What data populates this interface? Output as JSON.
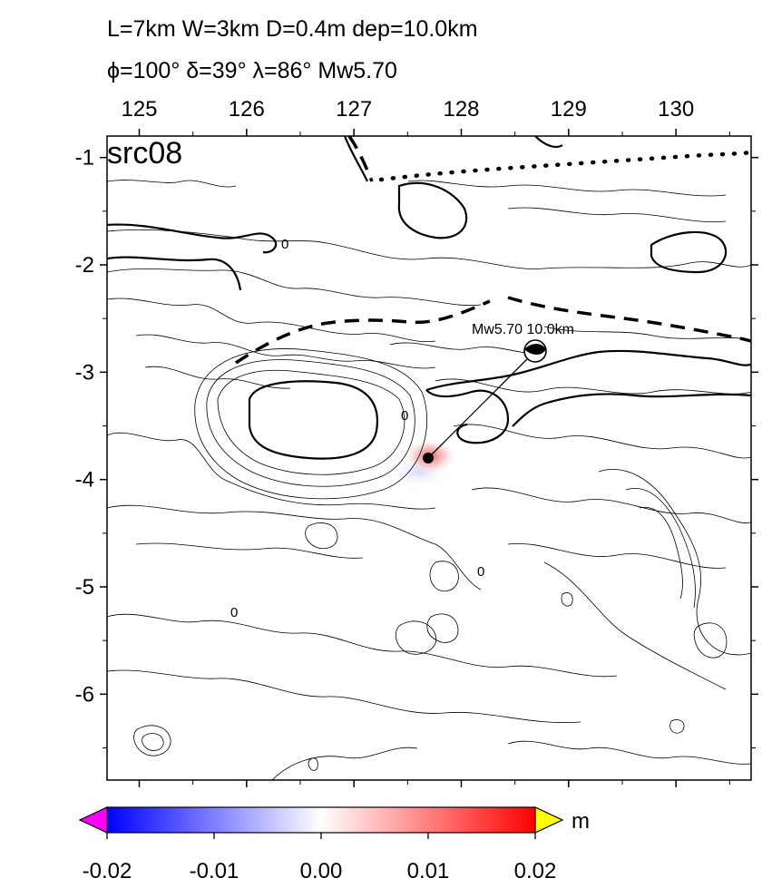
{
  "header": {
    "line1": "L=7km W=3km D=0.4m dep=10.0km",
    "line2": "ϕ=100° δ=39° λ=86° Mw5.70"
  },
  "map": {
    "panel_label": "src08",
    "x_ticks": [
      "125",
      "126",
      "127",
      "128",
      "129",
      "130"
    ],
    "x_tick_values": [
      125,
      126,
      127,
      128,
      129,
      130
    ],
    "y_ticks": [
      "-1",
      "-2",
      "-3",
      "-4",
      "-5",
      "-6"
    ],
    "y_tick_values": [
      -1,
      -2,
      -3,
      -4,
      -5,
      -6
    ],
    "x_range": [
      124.7,
      130.7
    ],
    "y_range": [
      -6.8,
      -0.8
    ],
    "contour_labels": [
      "0",
      "0",
      "0",
      "0"
    ],
    "epicenter": {
      "lon": 127.7,
      "lat": -3.8
    },
    "mechanism": {
      "lon": 128.7,
      "lat": -2.8,
      "label": "Mw5.70  10.0km"
    },
    "displacement_colors": {
      "uplift": "#e04040",
      "subsidence": "#3050ff"
    }
  },
  "colorbar": {
    "unit": "m",
    "tick_labels": [
      "-0.02",
      "-0.01",
      "0.00",
      "0.01",
      "0.02"
    ],
    "tick_values": [
      -0.02,
      -0.01,
      0.0,
      0.01,
      0.02
    ],
    "range": [
      -0.02,
      0.02
    ],
    "colors": {
      "min": "#0000ff",
      "mid": "#ffffff",
      "max": "#ff0000",
      "under": "#ff00ff",
      "over": "#ffff00"
    }
  }
}
